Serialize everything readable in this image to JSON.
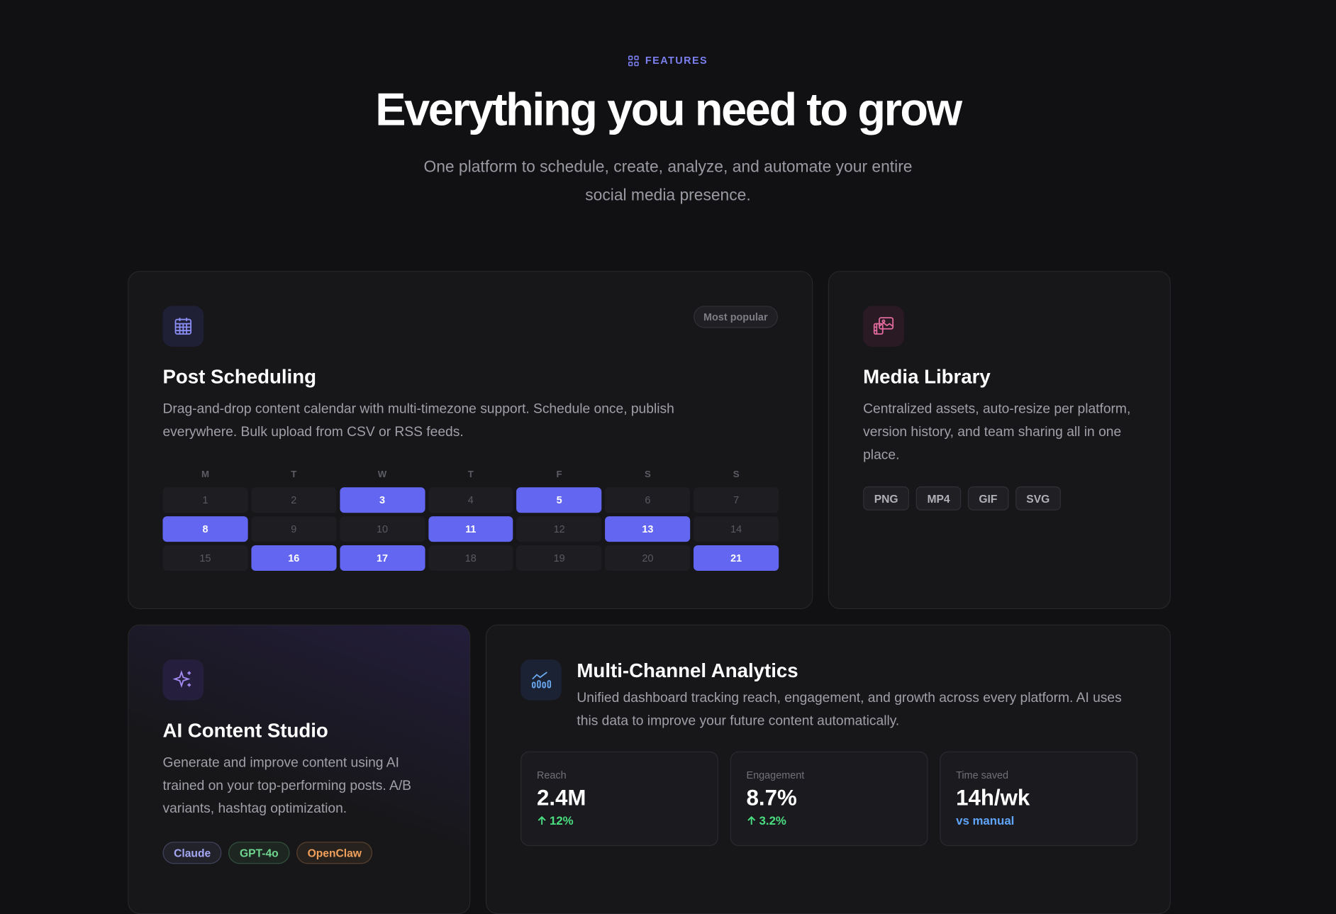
{
  "header": {
    "eyebrow": "FEATURES",
    "title": "Everything you need to grow",
    "subtitle": "One platform to schedule, create, analyze, and automate your entire social media presence."
  },
  "cards": [
    {
      "title": "Post Scheduling",
      "badge": "Most popular",
      "description": "Drag-and-drop content calendar with multi-timezone support. Schedule once, publish everywhere. Bulk upload from CSV or RSS feeds.",
      "calendar": {
        "weekdays": [
          "M",
          "T",
          "W",
          "T",
          "F",
          "S",
          "S"
        ],
        "days": [
          {
            "label": "1",
            "scheduled": false
          },
          {
            "label": "2",
            "scheduled": false
          },
          {
            "label": "3",
            "scheduled": true
          },
          {
            "label": "4",
            "scheduled": false
          },
          {
            "label": "5",
            "scheduled": true
          },
          {
            "label": "6",
            "scheduled": false
          },
          {
            "label": "7",
            "scheduled": false
          },
          {
            "label": "8",
            "scheduled": true
          },
          {
            "label": "9",
            "scheduled": false
          },
          {
            "label": "10",
            "scheduled": false
          },
          {
            "label": "11",
            "scheduled": true
          },
          {
            "label": "12",
            "scheduled": false
          },
          {
            "label": "13",
            "scheduled": true
          },
          {
            "label": "14",
            "scheduled": false
          },
          {
            "label": "15",
            "scheduled": false
          },
          {
            "label": "16",
            "scheduled": true
          },
          {
            "label": "17",
            "scheduled": true
          },
          {
            "label": "18",
            "scheduled": false
          },
          {
            "label": "19",
            "scheduled": false
          },
          {
            "label": "20",
            "scheduled": false
          },
          {
            "label": "21",
            "scheduled": true
          }
        ]
      }
    },
    {
      "title": "Media Library",
      "description": "Centralized assets, auto-resize per platform, version history, and team sharing all in one place.",
      "tags": [
        {
          "label": "PNG"
        },
        {
          "label": "MP4"
        },
        {
          "label": "GIF"
        },
        {
          "label": "SVG"
        }
      ]
    },
    {
      "title": "AI Content Studio",
      "description": "Generate and improve content using AI trained on your top-performing posts. A/B variants, hashtag optimization.",
      "tags": [
        {
          "label": "Claude",
          "color": "#a5a8f5"
        },
        {
          "label": "GPT-4o",
          "color": "#6fd68f"
        },
        {
          "label": "OpenClaw",
          "color": "#f0a05a"
        }
      ]
    },
    {
      "title": "Multi-Channel Analytics",
      "description": "Unified dashboard tracking reach, engagement, and growth across every platform. AI uses this data to improve your future content automatically.",
      "metrics": [
        {
          "label": "Reach",
          "value": "2.4M",
          "change": "12%",
          "trend": "up",
          "color": "#4ade80"
        },
        {
          "label": "Engagement",
          "value": "8.7%",
          "change": "3.2%",
          "trend": "up",
          "color": "#4ade80"
        },
        {
          "label": "Time saved",
          "value": "14h/wk",
          "change": "vs manual",
          "trend": null,
          "color": "#60a5fa"
        }
      ]
    }
  ]
}
